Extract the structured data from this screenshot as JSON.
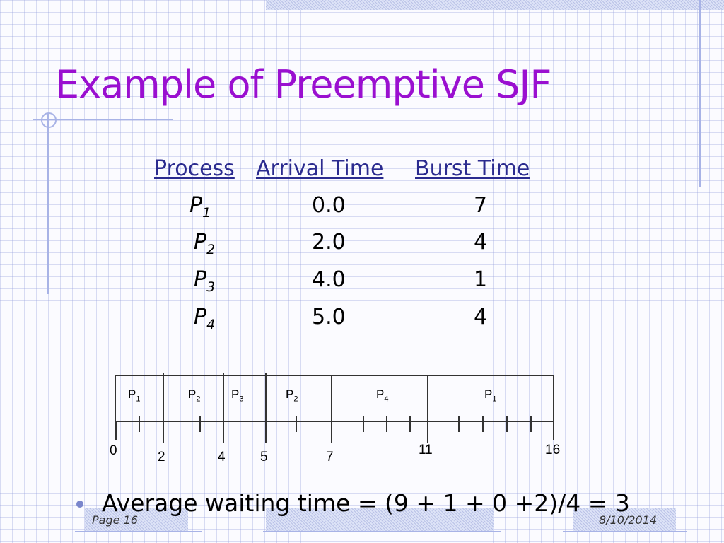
{
  "slide": {
    "title": "Example of Preemptive SJF"
  },
  "table": {
    "headers": [
      "Process",
      "Arrival Time",
      "Burst Time"
    ],
    "rows": [
      {
        "name": "P",
        "sub": "1",
        "arrival": "0.0",
        "burst": "7"
      },
      {
        "name": "P",
        "sub": "2",
        "arrival": "2.0",
        "burst": "4"
      },
      {
        "name": "P",
        "sub": "3",
        "arrival": "4.0",
        "burst": "1"
      },
      {
        "name": "P",
        "sub": "4",
        "arrival": "5.0",
        "burst": "4"
      }
    ]
  },
  "gantt": {
    "segments": [
      {
        "name": "P",
        "sub": "1",
        "start": 0,
        "end": 2
      },
      {
        "name": "P",
        "sub": "2",
        "start": 2,
        "end": 4
      },
      {
        "name": "P",
        "sub": "3",
        "start": 4,
        "end": 5
      },
      {
        "name": "P",
        "sub": "2",
        "start": 5,
        "end": 7
      },
      {
        "name": "P",
        "sub": "4",
        "start": 7,
        "end": 11
      },
      {
        "name": "P",
        "sub": "1",
        "start": 11,
        "end": 16
      }
    ],
    "time_labels": [
      "0",
      "2",
      "4",
      "5",
      "7",
      "11",
      "16"
    ]
  },
  "bullet": {
    "text": "Average waiting time = (9 + 1 + 0 +2)/4 = 3"
  },
  "footer": {
    "page": "Page 16",
    "date": "8/10/2014"
  },
  "colors": {
    "title": "#9a0fd0",
    "header": "#2b2b8f",
    "grid": "#a8b3e6"
  }
}
